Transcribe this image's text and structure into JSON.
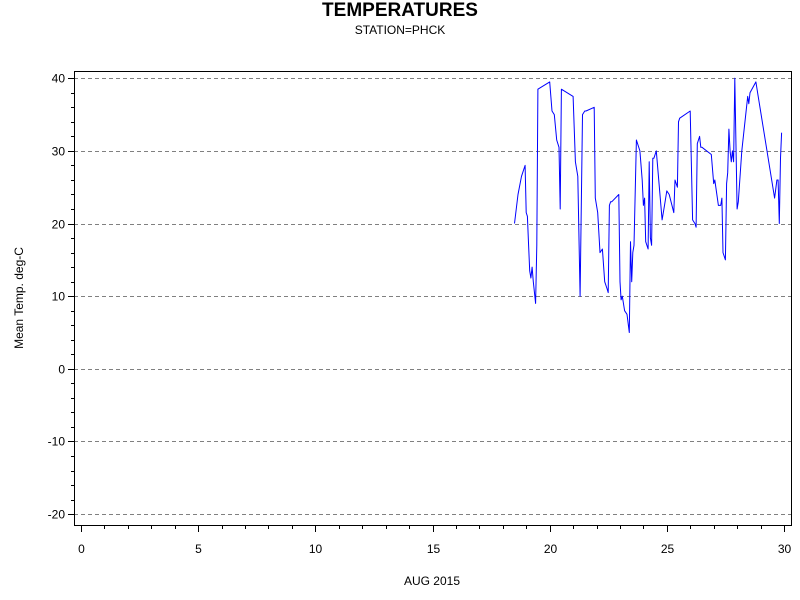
{
  "chart_data": {
    "type": "line",
    "title": "TEMPERATURES",
    "subtitle": "STATION=PHCK",
    "xlabel": "AUG 2015",
    "ylabel": "Mean Temp. deg-C",
    "xlim": [
      -0.3,
      30.3
    ],
    "ylim": [
      -21.5,
      41
    ],
    "xticks": [
      0,
      5,
      10,
      15,
      20,
      25,
      30
    ],
    "yticks": [
      -20,
      -10,
      0,
      10,
      20,
      30,
      40
    ],
    "grid": "horizontal-dashed",
    "series": [
      {
        "color": "#0000ff",
        "x": [
          18.5,
          18.65,
          18.8,
          18.95,
          19.0,
          19.05,
          19.1,
          19.15,
          19.2,
          19.25,
          19.3,
          19.4,
          19.45,
          19.5,
          20.0,
          20.1,
          20.2,
          20.3,
          20.4,
          20.45,
          20.5,
          21.0,
          21.1,
          21.2,
          21.3,
          21.4,
          21.5,
          21.55,
          21.9,
          21.95,
          22.05,
          22.15,
          22.25,
          22.35,
          22.45,
          22.5,
          22.55,
          22.6,
          22.65,
          22.95,
          23.0,
          23.05,
          23.1,
          23.2,
          23.3,
          23.4,
          23.45,
          23.5,
          23.55,
          23.6,
          23.7,
          23.85,
          23.95,
          24.0,
          24.05,
          24.1,
          24.2,
          24.25,
          24.3,
          24.35,
          24.4,
          24.45,
          24.5,
          24.55,
          24.8,
          24.9,
          25.0,
          25.1,
          25.3,
          25.35,
          25.45,
          25.5,
          25.55,
          26.0,
          26.1,
          26.2,
          26.25,
          26.3,
          26.4,
          26.45,
          26.5,
          26.9,
          27.0,
          27.05,
          27.2,
          27.3,
          27.35,
          27.4,
          27.5,
          27.55,
          27.6,
          27.65,
          27.7,
          27.75,
          27.8,
          27.85,
          27.9,
          28.0,
          28.05,
          28.2,
          28.45,
          28.5,
          28.55,
          28.8,
          28.9,
          29.6,
          29.7,
          29.75,
          29.8,
          29.85,
          29.9
        ],
        "y": [
          20.0,
          24.0,
          26.5,
          28.0,
          21.5,
          21.0,
          17.0,
          13.5,
          12.5,
          14.0,
          12.0,
          9.0,
          17.0,
          38.5,
          39.5,
          35.5,
          35.0,
          31.5,
          30.5,
          22.0,
          38.5,
          37.5,
          28.5,
          26.5,
          10.0,
          35.0,
          35.5,
          35.5,
          36.0,
          23.5,
          21.5,
          16.0,
          16.5,
          12.0,
          11.0,
          10.5,
          22.5,
          23.0,
          23.0,
          24.0,
          12.0,
          9.5,
          10.0,
          8.0,
          7.5,
          5.0,
          17.5,
          12.0,
          16.0,
          17.0,
          31.5,
          30.0,
          26.0,
          22.5,
          23.5,
          17.5,
          16.5,
          28.5,
          18.0,
          17.0,
          29.0,
          29.0,
          29.5,
          30.0,
          20.5,
          22.5,
          24.5,
          24.0,
          21.5,
          26.0,
          25.0,
          34.0,
          34.5,
          35.5,
          20.5,
          20.0,
          19.5,
          31.0,
          32.0,
          30.5,
          30.5,
          29.5,
          25.5,
          26.0,
          22.5,
          22.5,
          23.5,
          16.0,
          15.0,
          25.5,
          27.0,
          33.0,
          30.0,
          28.5,
          30.0,
          28.5,
          40.0,
          22.0,
          23.0,
          30.0,
          37.5,
          36.5,
          38.0,
          39.5,
          37.5,
          23.5,
          26.0,
          26.0,
          20.0,
          29.0,
          32.5
        ]
      }
    ]
  }
}
